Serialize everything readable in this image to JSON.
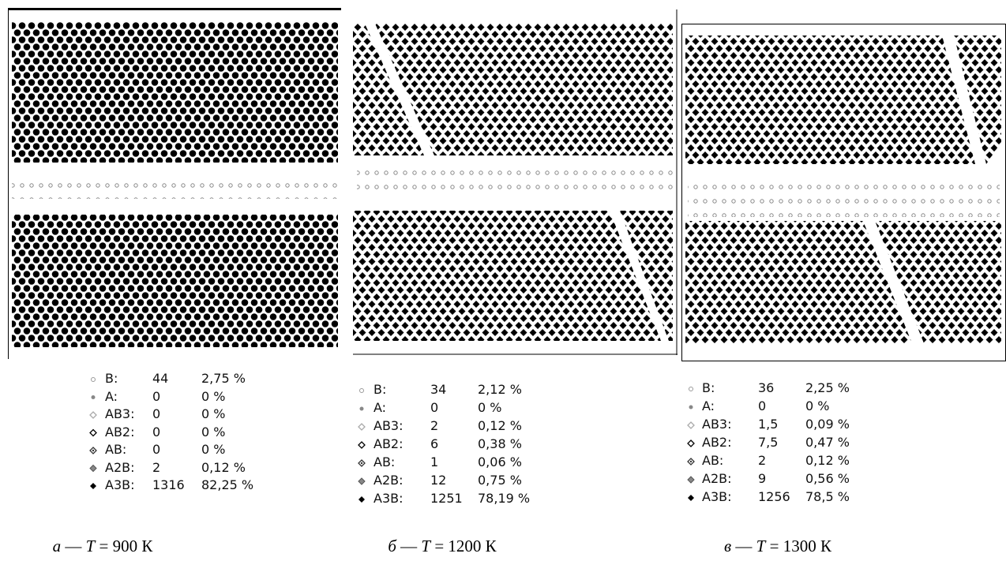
{
  "panels": [
    {
      "rows": [
        [
          "B:",
          "44",
          "2,75 %"
        ],
        [
          "A:",
          "0",
          "0 %"
        ],
        [
          "AB3:",
          "0",
          "0 %"
        ],
        [
          "AB2:",
          "0",
          "0 %"
        ],
        [
          "AB:",
          "0",
          "0 %"
        ],
        [
          "A2B:",
          "2",
          "0,12 %"
        ],
        [
          "A3B:",
          "1316",
          "82,25 %"
        ]
      ],
      "caption": {
        "letter": "а",
        "sep": "—",
        "variable": "T",
        "value": "= 900 К"
      }
    },
    {
      "rows": [
        [
          "B:",
          "34",
          "2,12 %"
        ],
        [
          "A:",
          "0",
          "0 %"
        ],
        [
          "AB3:",
          "2",
          "0,12 %"
        ],
        [
          "AB2:",
          "6",
          "0,38 %"
        ],
        [
          "AB:",
          "1",
          "0,06 %"
        ],
        [
          "A2B:",
          "12",
          "0,75 %"
        ],
        [
          "A3B:",
          "1251",
          "78,19 %"
        ]
      ],
      "caption": {
        "letter": "б",
        "sep": "—",
        "variable": "T",
        "value": "= 1200 К"
      }
    },
    {
      "rows": [
        [
          "B:",
          "36",
          "2,25 %"
        ],
        [
          "A:",
          "0",
          "0 %"
        ],
        [
          "AB3:",
          "1,5",
          "0,09 %"
        ],
        [
          "AB2:",
          "7,5",
          "0,47 %"
        ],
        [
          "AB:",
          "2",
          "0,12 %"
        ],
        [
          "A2B:",
          "9",
          "0,56 %"
        ],
        [
          "A3B:",
          "1256",
          "78,5 %"
        ]
      ],
      "caption": {
        "letter": "в",
        "sep": "—",
        "variable": "T",
        "value": "= 1300 К"
      }
    }
  ]
}
